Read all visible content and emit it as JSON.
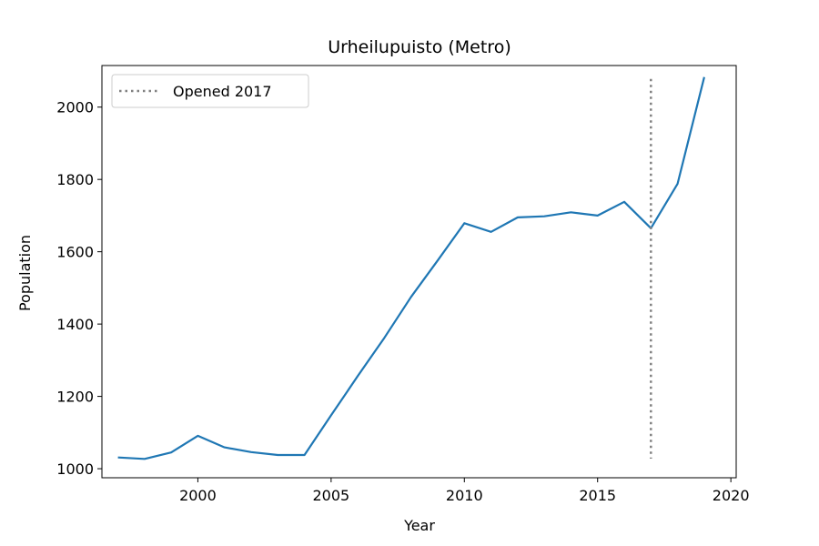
{
  "chart_data": {
    "type": "line",
    "title": "Urheilupuisto (Metro)",
    "xlabel": "Year",
    "ylabel": "Population",
    "xlim": [
      1996.4,
      2020.2
    ],
    "ylim": [
      975,
      2115
    ],
    "xticks": [
      2000,
      2005,
      2010,
      2015,
      2020
    ],
    "yticks": [
      1000,
      1200,
      1400,
      1600,
      1800,
      2000
    ],
    "grid": false,
    "legend_position": "top-left",
    "series": [
      {
        "name": "",
        "color": "#1f77b4",
        "x": [
          1997,
          1998,
          1999,
          2000,
          2001,
          2002,
          2003,
          2004,
          2005,
          2006,
          2007,
          2008,
          2009,
          2010,
          2011,
          2012,
          2013,
          2014,
          2015,
          2016,
          2017,
          2018,
          2019
        ],
        "y": [
          1031,
          1027,
          1045,
          1091,
          1059,
          1046,
          1038,
          1038,
          1148,
          1256,
          1362,
          1475,
          1576,
          1679,
          1655,
          1695,
          1698,
          1709,
          1700,
          1738,
          1665,
          1788,
          2083
        ]
      }
    ],
    "annotations": [
      {
        "type": "vline",
        "x": 2017,
        "y_range": [
          1028,
          2078
        ],
        "style": "dotted",
        "color": "#808080",
        "label": "Opened 2017"
      }
    ]
  }
}
